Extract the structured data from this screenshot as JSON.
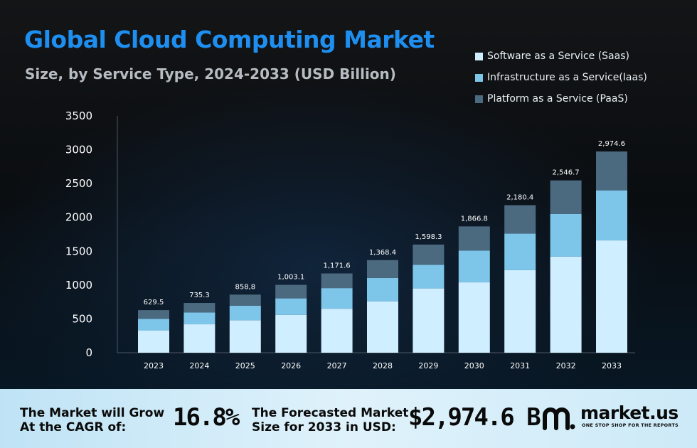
{
  "header": {
    "title": "Global Cloud Computing Market",
    "subtitle": "Size, by Service Type, 2024-2033 (USD Billion)"
  },
  "colors": {
    "title": "#1e8ff0",
    "saas": "#cfeeff",
    "iaas": "#7ec5ea",
    "paas": "#4b6a80"
  },
  "legend": [
    {
      "label": "Software as a Service (Saas)",
      "color": "#cfeeff"
    },
    {
      "label": "Infrastructure as a Service(Iaas)",
      "color": "#7ec5ea"
    },
    {
      "label": "Platform as a Service (PaaS)",
      "color": "#4b6a80"
    }
  ],
  "chart_data": {
    "type": "bar",
    "stacked": true,
    "categories": [
      "2023",
      "2024",
      "2025",
      "2026",
      "2027",
      "2028",
      "2029",
      "2030",
      "2031",
      "2032",
      "2033"
    ],
    "series": [
      {
        "name": "Software as a Service (Saas)",
        "values": [
          330,
          420,
          480,
          560,
          650,
          760,
          950,
          1040,
          1220,
          1420,
          1660
        ]
      },
      {
        "name": "Infrastructure as a Service(Iaas)",
        "values": [
          170,
          175,
          215,
          243,
          305,
          345,
          350,
          470,
          540,
          630,
          740
        ]
      },
      {
        "name": "Platform as a Service (PaaS)",
        "values": [
          129.5,
          140.3,
          163.8,
          200.1,
          216.6,
          263.4,
          298.3,
          356.8,
          420.4,
          496.7,
          574.6
        ]
      }
    ],
    "totals": [
      629.5,
      735.3,
      858.8,
      1003.1,
      1171.6,
      1368.4,
      1598.3,
      1866.8,
      2180.4,
      2546.7,
      2974.6
    ],
    "total_labels": [
      "629.5",
      "735.3",
      "858,8",
      "1,003.1",
      "1,171.6",
      "1,368.4",
      "1,598.3",
      "1,866.8",
      "2,180.4",
      "2,546.7",
      "2,974.6"
    ],
    "yticks": [
      0,
      500,
      1000,
      1500,
      2000,
      2500,
      3000,
      3500
    ],
    "ylim": [
      0,
      3500
    ],
    "xlabel": "",
    "ylabel": "",
    "grid": false,
    "legend_position": "top-right"
  },
  "footer": {
    "cagr_label_line1": "The Market will Grow",
    "cagr_label_line2": "At the CAGR of:",
    "cagr_value": "16.8%",
    "forecast_label_line1": "The Forecasted Market",
    "forecast_label_line2": "Size for 2033 in USD:",
    "forecast_value": "$2,974.6 B",
    "brand_name": "market.us",
    "brand_tagline": "ONE STOP SHOP FOR THE REPORTS"
  }
}
